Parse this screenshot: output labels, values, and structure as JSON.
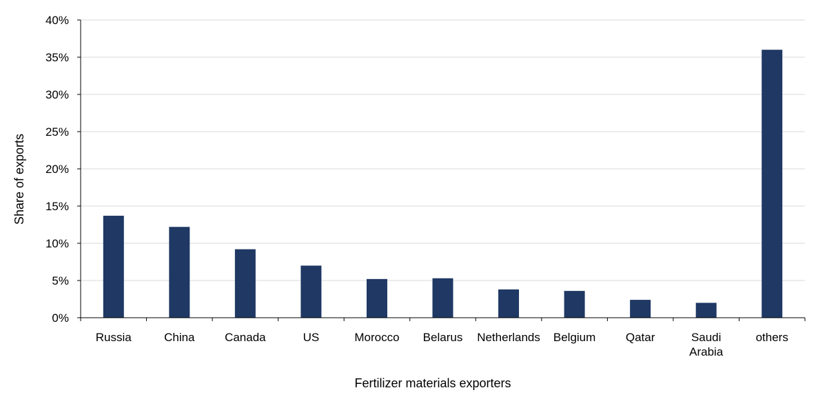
{
  "chart_data": {
    "type": "bar",
    "title": "",
    "xlabel": "Fertilizer materials exporters",
    "ylabel": "Share of exports",
    "categories": [
      "Russia",
      "China",
      "Canada",
      "US",
      "Morocco",
      "Belarus",
      "Netherlands",
      "Belgium",
      "Qatar",
      "Saudi Arabia",
      "others"
    ],
    "category_lines": [
      [
        "Russia"
      ],
      [
        "China"
      ],
      [
        "Canada"
      ],
      [
        "US"
      ],
      [
        "Morocco"
      ],
      [
        "Belarus"
      ],
      [
        "Netherlands"
      ],
      [
        "Belgium"
      ],
      [
        "Qatar"
      ],
      [
        "Saudi",
        "Arabia"
      ],
      [
        "others"
      ]
    ],
    "values": [
      13.7,
      12.2,
      9.2,
      7.0,
      5.2,
      5.3,
      3.8,
      3.6,
      2.4,
      2.0,
      36.0
    ],
    "ylim": [
      0,
      40
    ],
    "yticks": [
      "0%",
      "5%",
      "10%",
      "15%",
      "20%",
      "25%",
      "30%",
      "35%",
      "40%"
    ],
    "grid": true,
    "legend": "none",
    "bar_color": "#1f3864"
  }
}
